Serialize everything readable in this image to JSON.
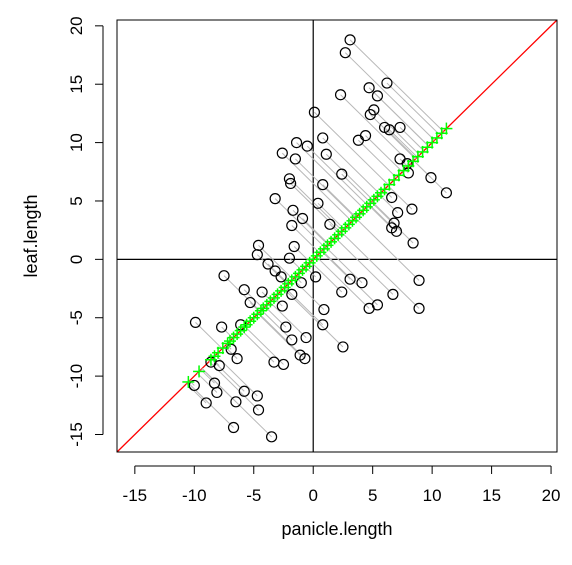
{
  "chart_data": {
    "type": "scatter",
    "title": "",
    "xlabel": "panicle.length",
    "ylabel": "leaf.length",
    "xlim": [
      -16.5,
      20.5
    ],
    "ylim": [
      -16.5,
      20.5
    ],
    "xticks": [
      "-15",
      "-10",
      "-5",
      "0",
      "5",
      "10",
      "15",
      "20"
    ],
    "yticks": [
      "-15",
      "-10",
      "-5",
      "0",
      "5",
      "10",
      "15",
      "20"
    ],
    "grid": false,
    "legend": "none",
    "reference_lines": [
      {
        "type": "horizontal",
        "y": 0,
        "color": "#000000"
      },
      {
        "type": "vertical",
        "x": 0,
        "color": "#000000"
      },
      {
        "type": "diagonal",
        "slope": 1,
        "intercept": 0,
        "color": "#ff0000"
      }
    ],
    "series": [
      {
        "marker": "open-circle",
        "color": "#000000",
        "points": [
          [
            3.1,
            18.8
          ],
          [
            2.7,
            17.7
          ],
          [
            6.2,
            15.1
          ],
          [
            4.7,
            14.7
          ],
          [
            5.4,
            14.0
          ],
          [
            2.3,
            14.1
          ],
          [
            5.1,
            12.8
          ],
          [
            4.8,
            12.4
          ],
          [
            0.1,
            12.6
          ],
          [
            6.0,
            11.3
          ],
          [
            6.4,
            11.1
          ],
          [
            7.3,
            11.3
          ],
          [
            -1.4,
            10.0
          ],
          [
            0.8,
            10.4
          ],
          [
            3.8,
            10.2
          ],
          [
            4.4,
            10.6
          ],
          [
            -1.5,
            8.6
          ],
          [
            -2.6,
            9.1
          ],
          [
            1.1,
            9.0
          ],
          [
            -0.5,
            9.7
          ],
          [
            7.3,
            8.6
          ],
          [
            7.9,
            8.2
          ],
          [
            8.0,
            7.4
          ],
          [
            9.9,
            7.0
          ],
          [
            11.2,
            5.7
          ],
          [
            -2.0,
            6.9
          ],
          [
            -1.9,
            6.5
          ],
          [
            0.8,
            6.4
          ],
          [
            2.4,
            7.3
          ],
          [
            -3.2,
            5.2
          ],
          [
            -1.7,
            4.2
          ],
          [
            0.4,
            4.8
          ],
          [
            6.6,
            5.3
          ],
          [
            8.3,
            4.3
          ],
          [
            7.1,
            4.0
          ],
          [
            6.8,
            3.1
          ],
          [
            -1.8,
            2.9
          ],
          [
            -0.9,
            3.5
          ],
          [
            -1.6,
            1.1
          ],
          [
            -4.6,
            1.2
          ],
          [
            1.4,
            3.0
          ],
          [
            6.6,
            2.7
          ],
          [
            7.0,
            2.4
          ],
          [
            8.4,
            1.4
          ],
          [
            -4.7,
            0.4
          ],
          [
            -3.8,
            -0.4
          ],
          [
            -3.2,
            -1.0
          ],
          [
            -2.0,
            0.1
          ],
          [
            -7.5,
            -1.4
          ],
          [
            -2.7,
            -1.5
          ],
          [
            -1.0,
            -2.0
          ],
          [
            0.2,
            -1.5
          ],
          [
            3.1,
            -1.7
          ],
          [
            4.1,
            -2.0
          ],
          [
            8.9,
            -1.8
          ],
          [
            -5.8,
            -2.6
          ],
          [
            -4.3,
            -2.8
          ],
          [
            -1.8,
            -3.0
          ],
          [
            2.4,
            -2.8
          ],
          [
            6.7,
            -3.0
          ],
          [
            -5.3,
            -3.7
          ],
          [
            -2.6,
            -4.0
          ],
          [
            0.9,
            -4.3
          ],
          [
            4.7,
            -4.2
          ],
          [
            5.4,
            -3.9
          ],
          [
            8.9,
            -4.2
          ],
          [
            -9.9,
            -5.4
          ],
          [
            -7.7,
            -5.8
          ],
          [
            -6.1,
            -5.6
          ],
          [
            -2.3,
            -5.8
          ],
          [
            0.8,
            -5.6
          ],
          [
            -6.9,
            -7.7
          ],
          [
            -1.8,
            -6.9
          ],
          [
            -0.6,
            -6.7
          ],
          [
            2.5,
            -7.5
          ],
          [
            -8.6,
            -8.8
          ],
          [
            -7.9,
            -9.1
          ],
          [
            -6.4,
            -8.5
          ],
          [
            -3.3,
            -8.8
          ],
          [
            -1.1,
            -8.2
          ],
          [
            -2.5,
            -9.0
          ],
          [
            -0.7,
            -8.5
          ],
          [
            -10.0,
            -10.8
          ],
          [
            -8.3,
            -10.6
          ],
          [
            -5.8,
            -11.3
          ],
          [
            -6.5,
            -12.2
          ],
          [
            -4.7,
            -11.7
          ],
          [
            -8.1,
            -11.4
          ],
          [
            -9.0,
            -12.3
          ],
          [
            -4.6,
            -12.9
          ],
          [
            -6.7,
            -14.4
          ],
          [
            -3.5,
            -15.2
          ]
        ]
      },
      {
        "marker": "plus",
        "color": "#00ff00",
        "values_on_diagonal": [
          -10.5,
          -9.6,
          -8.6,
          -8.3,
          -8.0,
          -7.6,
          -7.2,
          -7.0,
          -6.7,
          -6.4,
          -6.1,
          -5.8,
          -5.6,
          -5.3,
          -5.0,
          -4.7,
          -4.4,
          -4.2,
          -3.9,
          -3.6,
          -3.3,
          -3.0,
          -2.7,
          -2.4,
          -2.1,
          -1.8,
          -1.5,
          -1.2,
          -0.9,
          -0.6,
          -0.3,
          0.0,
          0.3,
          0.6,
          0.9,
          1.2,
          1.5,
          1.8,
          2.1,
          2.4,
          2.7,
          3.0,
          3.3,
          3.6,
          3.9,
          4.2,
          4.5,
          4.8,
          5.1,
          5.4,
          5.7,
          6.0,
          6.4,
          6.8,
          7.2,
          7.6,
          8.0,
          8.4,
          8.8,
          9.2,
          9.6,
          10.0,
          10.4,
          10.8,
          11.2
        ]
      }
    ]
  }
}
